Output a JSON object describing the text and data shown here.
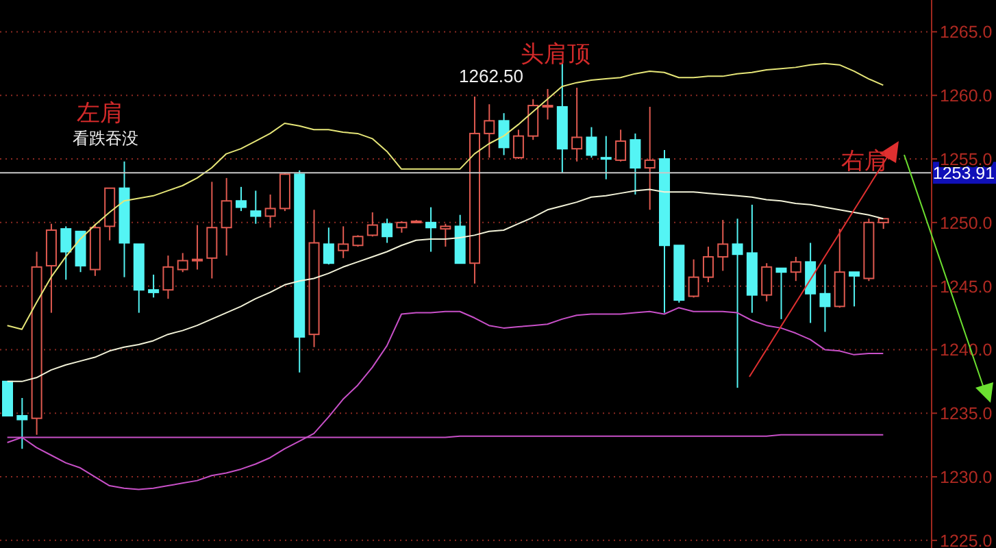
{
  "chart_data": {
    "type": "candlestick",
    "categories": [
      null,
      null,
      null,
      null,
      null,
      null,
      null,
      null,
      null,
      null,
      null,
      null,
      null,
      null,
      null,
      null,
      null,
      null,
      null,
      null,
      null,
      null,
      null,
      null,
      null,
      null,
      null,
      null,
      null,
      null,
      null,
      null,
      null,
      null,
      null,
      null,
      null,
      null,
      null,
      null,
      null,
      null,
      null,
      null,
      null,
      null,
      null,
      null,
      null,
      null,
      null,
      null,
      null,
      null,
      null,
      null,
      null,
      null,
      null,
      null,
      null
    ],
    "ohlc": [
      [
        1237.5,
        1237.5,
        1234.8,
        1234.8
      ],
      [
        1234.8,
        1236.2,
        1232.2,
        1234.5
      ],
      [
        1234.6,
        1247.7,
        1233.3,
        1246.5
      ],
      [
        1246.6,
        1249.9,
        1242.9,
        1249.4
      ],
      [
        1249.5,
        1249.7,
        1245.5,
        1247.7
      ],
      [
        1249.3,
        1249.3,
        1246.1,
        1246.6
      ],
      [
        1246.3,
        1249.9,
        1245.8,
        1249.6
      ],
      [
        1249.7,
        1252.7,
        1248.6,
        1252.7
      ],
      [
        1252.7,
        1254.8,
        1245.7,
        1248.4
      ],
      [
        1248.3,
        1248.3,
        1242.9,
        1244.7
      ],
      [
        1244.7,
        1245.9,
        1244.1,
        1244.5
      ],
      [
        1244.7,
        1247.4,
        1244.0,
        1246.5
      ],
      [
        1246.3,
        1247.6,
        1246.1,
        1247.0
      ],
      [
        1247.0,
        1249.8,
        1246.3,
        1247.1
      ],
      [
        1247.2,
        1253.2,
        1245.6,
        1249.6
      ],
      [
        1249.6,
        1253.5,
        1247.4,
        1251.7
      ],
      [
        1251.7,
        1252.8,
        1250.9,
        1251.2
      ],
      [
        1250.9,
        1252.5,
        1249.9,
        1250.5
      ],
      [
        1250.5,
        1252.2,
        1249.6,
        1251.1
      ],
      [
        1251.1,
        1253.9,
        1250.9,
        1253.8
      ],
      [
        1253.8,
        1254.1,
        1238.2,
        1241.0
      ],
      [
        1241.2,
        1251.0,
        1240.2,
        1248.4
      ],
      [
        1248.3,
        1249.6,
        1246.7,
        1246.8
      ],
      [
        1247.8,
        1249.7,
        1247.2,
        1248.3
      ],
      [
        1248.2,
        1249.0,
        1248.1,
        1248.9
      ],
      [
        1249.0,
        1250.8,
        1248.9,
        1249.8
      ],
      [
        1249.9,
        1250.3,
        1248.4,
        1248.9
      ],
      [
        1249.6,
        1250.1,
        1249.2,
        1250.0
      ],
      [
        1250.0,
        1250.2,
        1250.0,
        1250.1
      ],
      [
        1250.0,
        1251.2,
        1247.7,
        1249.6
      ],
      [
        1249.5,
        1249.9,
        1248.1,
        1249.7
      ],
      [
        1249.7,
        1250.6,
        1246.8,
        1246.8
      ],
      [
        1246.8,
        1259.9,
        1245.2,
        1257.0
      ],
      [
        1257.0,
        1259.3,
        1255.1,
        1258.0
      ],
      [
        1258.0,
        1258.6,
        1255.3,
        1255.9
      ],
      [
        1255.1,
        1257.3,
        1255.0,
        1256.8
      ],
      [
        1256.8,
        1259.7,
        1256.5,
        1259.2
      ],
      [
        1259.1,
        1260.5,
        1258.1,
        1259.2
      ],
      [
        1259.1,
        1262.5,
        1253.9,
        1255.8
      ],
      [
        1255.8,
        1260.6,
        1254.8,
        1256.7
      ],
      [
        1256.7,
        1257.5,
        1255.1,
        1255.3
      ],
      [
        1255.1,
        1256.8,
        1253.4,
        1255.0
      ],
      [
        1254.9,
        1257.3,
        1254.8,
        1256.4
      ],
      [
        1256.5,
        1257.0,
        1252.2,
        1254.3
      ],
      [
        1254.3,
        1259.1,
        1251.0,
        1254.9
      ],
      [
        1255.0,
        1255.7,
        1242.9,
        1248.2
      ],
      [
        1248.2,
        1248.2,
        1243.7,
        1243.9
      ],
      [
        1244.2,
        1247.1,
        1244.1,
        1245.7
      ],
      [
        1245.7,
        1248.1,
        1245.3,
        1247.3
      ],
      [
        1247.3,
        1250.2,
        1246.2,
        1248.3
      ],
      [
        1248.3,
        1250.3,
        1237.0,
        1247.5
      ],
      [
        1247.6,
        1251.4,
        1242.9,
        1244.3
      ],
      [
        1244.3,
        1246.8,
        1243.8,
        1246.5
      ],
      [
        1246.4,
        1246.4,
        1242.4,
        1246.1
      ],
      [
        1246.1,
        1247.3,
        1245.4,
        1246.9
      ],
      [
        1246.9,
        1248.4,
        1242.1,
        1244.4
      ],
      [
        1244.4,
        1246.7,
        1241.4,
        1243.4
      ],
      [
        1243.4,
        1249.5,
        1243.3,
        1246.1
      ],
      [
        1246.1,
        1246.1,
        1243.4,
        1245.8
      ],
      [
        1245.6,
        1250.3,
        1245.4,
        1250.0
      ],
      [
        1250.0,
        1250.3,
        1249.5,
        1250.3
      ]
    ],
    "series": [
      {
        "type": "line",
        "color": "#e6e678",
        "values": [
          1241.9,
          1241.6,
          1243.7,
          1245.7,
          1247.3,
          1248.7,
          1249.8,
          1250.8,
          1251.7,
          1251.9,
          1252.1,
          1252.5,
          1252.9,
          1253.5,
          1254.3,
          1255.4,
          1255.8,
          1256.4,
          1257.0,
          1257.8,
          1257.6,
          1257.3,
          1257.3,
          1257.1,
          1257.0,
          1256.6,
          1255.6,
          1254.2,
          1254.2,
          1254.2,
          1254.2,
          1254.2,
          1255.4,
          1256.2,
          1256.8,
          1257.7,
          1258.7,
          1259.7,
          1260.7,
          1261.0,
          1261.2,
          1261.3,
          1261.4,
          1261.7,
          1261.9,
          1261.8,
          1261.4,
          1261.4,
          1261.5,
          1261.5,
          1261.7,
          1261.8,
          1262.0,
          1262.1,
          1262.2,
          1262.4,
          1262.5,
          1262.4,
          1261.9,
          1261.3,
          1260.8
        ]
      },
      {
        "type": "line",
        "color": "#f2f2d8",
        "values": [
          1237.5,
          1237.5,
          1237.8,
          1238.4,
          1238.8,
          1239.1,
          1239.4,
          1239.9,
          1240.2,
          1240.4,
          1240.7,
          1241.2,
          1241.5,
          1241.9,
          1242.4,
          1242.9,
          1243.4,
          1244.0,
          1244.5,
          1245.1,
          1245.4,
          1245.6,
          1246.0,
          1246.5,
          1246.9,
          1247.3,
          1247.7,
          1248.2,
          1248.6,
          1248.7,
          1248.7,
          1248.8,
          1249.0,
          1249.3,
          1249.4,
          1249.9,
          1250.4,
          1251.0,
          1251.3,
          1251.6,
          1252.0,
          1252.1,
          1252.3,
          1252.5,
          1252.6,
          1252.4,
          1252.4,
          1252.4,
          1252.3,
          1252.2,
          1252.1,
          1252.0,
          1251.8,
          1251.7,
          1251.5,
          1251.4,
          1251.2,
          1251.0,
          1250.8,
          1250.6,
          1250.3
        ]
      },
      {
        "type": "line",
        "color": "#c850c8",
        "values": [
          1232.7,
          1233.1,
          1232.3,
          1231.7,
          1231.1,
          1230.7,
          1230.0,
          1229.3,
          1229.1,
          1229.0,
          1229.1,
          1229.3,
          1229.5,
          1229.7,
          1230.1,
          1230.3,
          1230.6,
          1231.0,
          1231.5,
          1232.2,
          1232.8,
          1233.4,
          1234.7,
          1236.1,
          1237.2,
          1238.6,
          1240.3,
          1242.8,
          1242.9,
          1242.9,
          1243.0,
          1243.0,
          1242.5,
          1241.9,
          1241.7,
          1241.8,
          1241.9,
          1242.0,
          1242.4,
          1242.7,
          1242.8,
          1242.8,
          1242.8,
          1242.9,
          1243.0,
          1242.8,
          1243.3,
          1243.0,
          1243.0,
          1243.0,
          1242.9,
          1242.3,
          1241.9,
          1241.7,
          1241.3,
          1240.8,
          1240.0,
          1239.9,
          1239.6,
          1239.7,
          1239.7
        ]
      },
      {
        "type": "line",
        "color": "#c850c8",
        "values": [
          1233.1,
          1233.1,
          1233.1,
          1233.1,
          1233.1,
          1233.1,
          1233.1,
          1233.1,
          1233.1,
          1233.1,
          1233.1,
          1233.1,
          1233.1,
          1233.1,
          1233.1,
          1233.1,
          1233.1,
          1233.1,
          1233.1,
          1233.1,
          1233.1,
          1233.1,
          1233.1,
          1233.1,
          1233.1,
          1233.1,
          1233.1,
          1233.1,
          1233.1,
          1233.1,
          1233.1,
          1233.2,
          1233.2,
          1233.2,
          1233.2,
          1233.2,
          1233.2,
          1233.2,
          1233.2,
          1233.2,
          1233.2,
          1233.2,
          1233.2,
          1233.2,
          1233.2,
          1233.2,
          1233.2,
          1233.2,
          1233.2,
          1233.2,
          1233.2,
          1233.2,
          1233.2,
          1233.3,
          1233.3,
          1233.3,
          1233.3,
          1233.3,
          1233.3,
          1233.3,
          1233.3
        ]
      }
    ],
    "ylim": [
      1224.4,
      1267.5
    ],
    "yticks": [
      {
        "value": 1225,
        "label": "1225.0"
      },
      {
        "value": 1230,
        "label": "1230.0"
      },
      {
        "value": 1235,
        "label": "1235.0"
      },
      {
        "value": 1240,
        "label": "1240.0"
      },
      {
        "value": 1245,
        "label": "1245.0"
      },
      {
        "value": 1250,
        "label": "1250.0"
      },
      {
        "value": 1255,
        "label": "1255.0"
      },
      {
        "value": 1260,
        "label": "1260.0"
      },
      {
        "value": 1265,
        "label": "1265.0"
      }
    ],
    "ref_lines": [
      {
        "axis": "y",
        "value": 1253.91,
        "label": "1253.91",
        "color": "#c8c8c8"
      }
    ],
    "annotations": [
      "左肩",
      "看跌吞没",
      "1262.50",
      "头肩顶",
      "右肩"
    ],
    "grid": "y",
    "tick_labels": "y"
  }
}
